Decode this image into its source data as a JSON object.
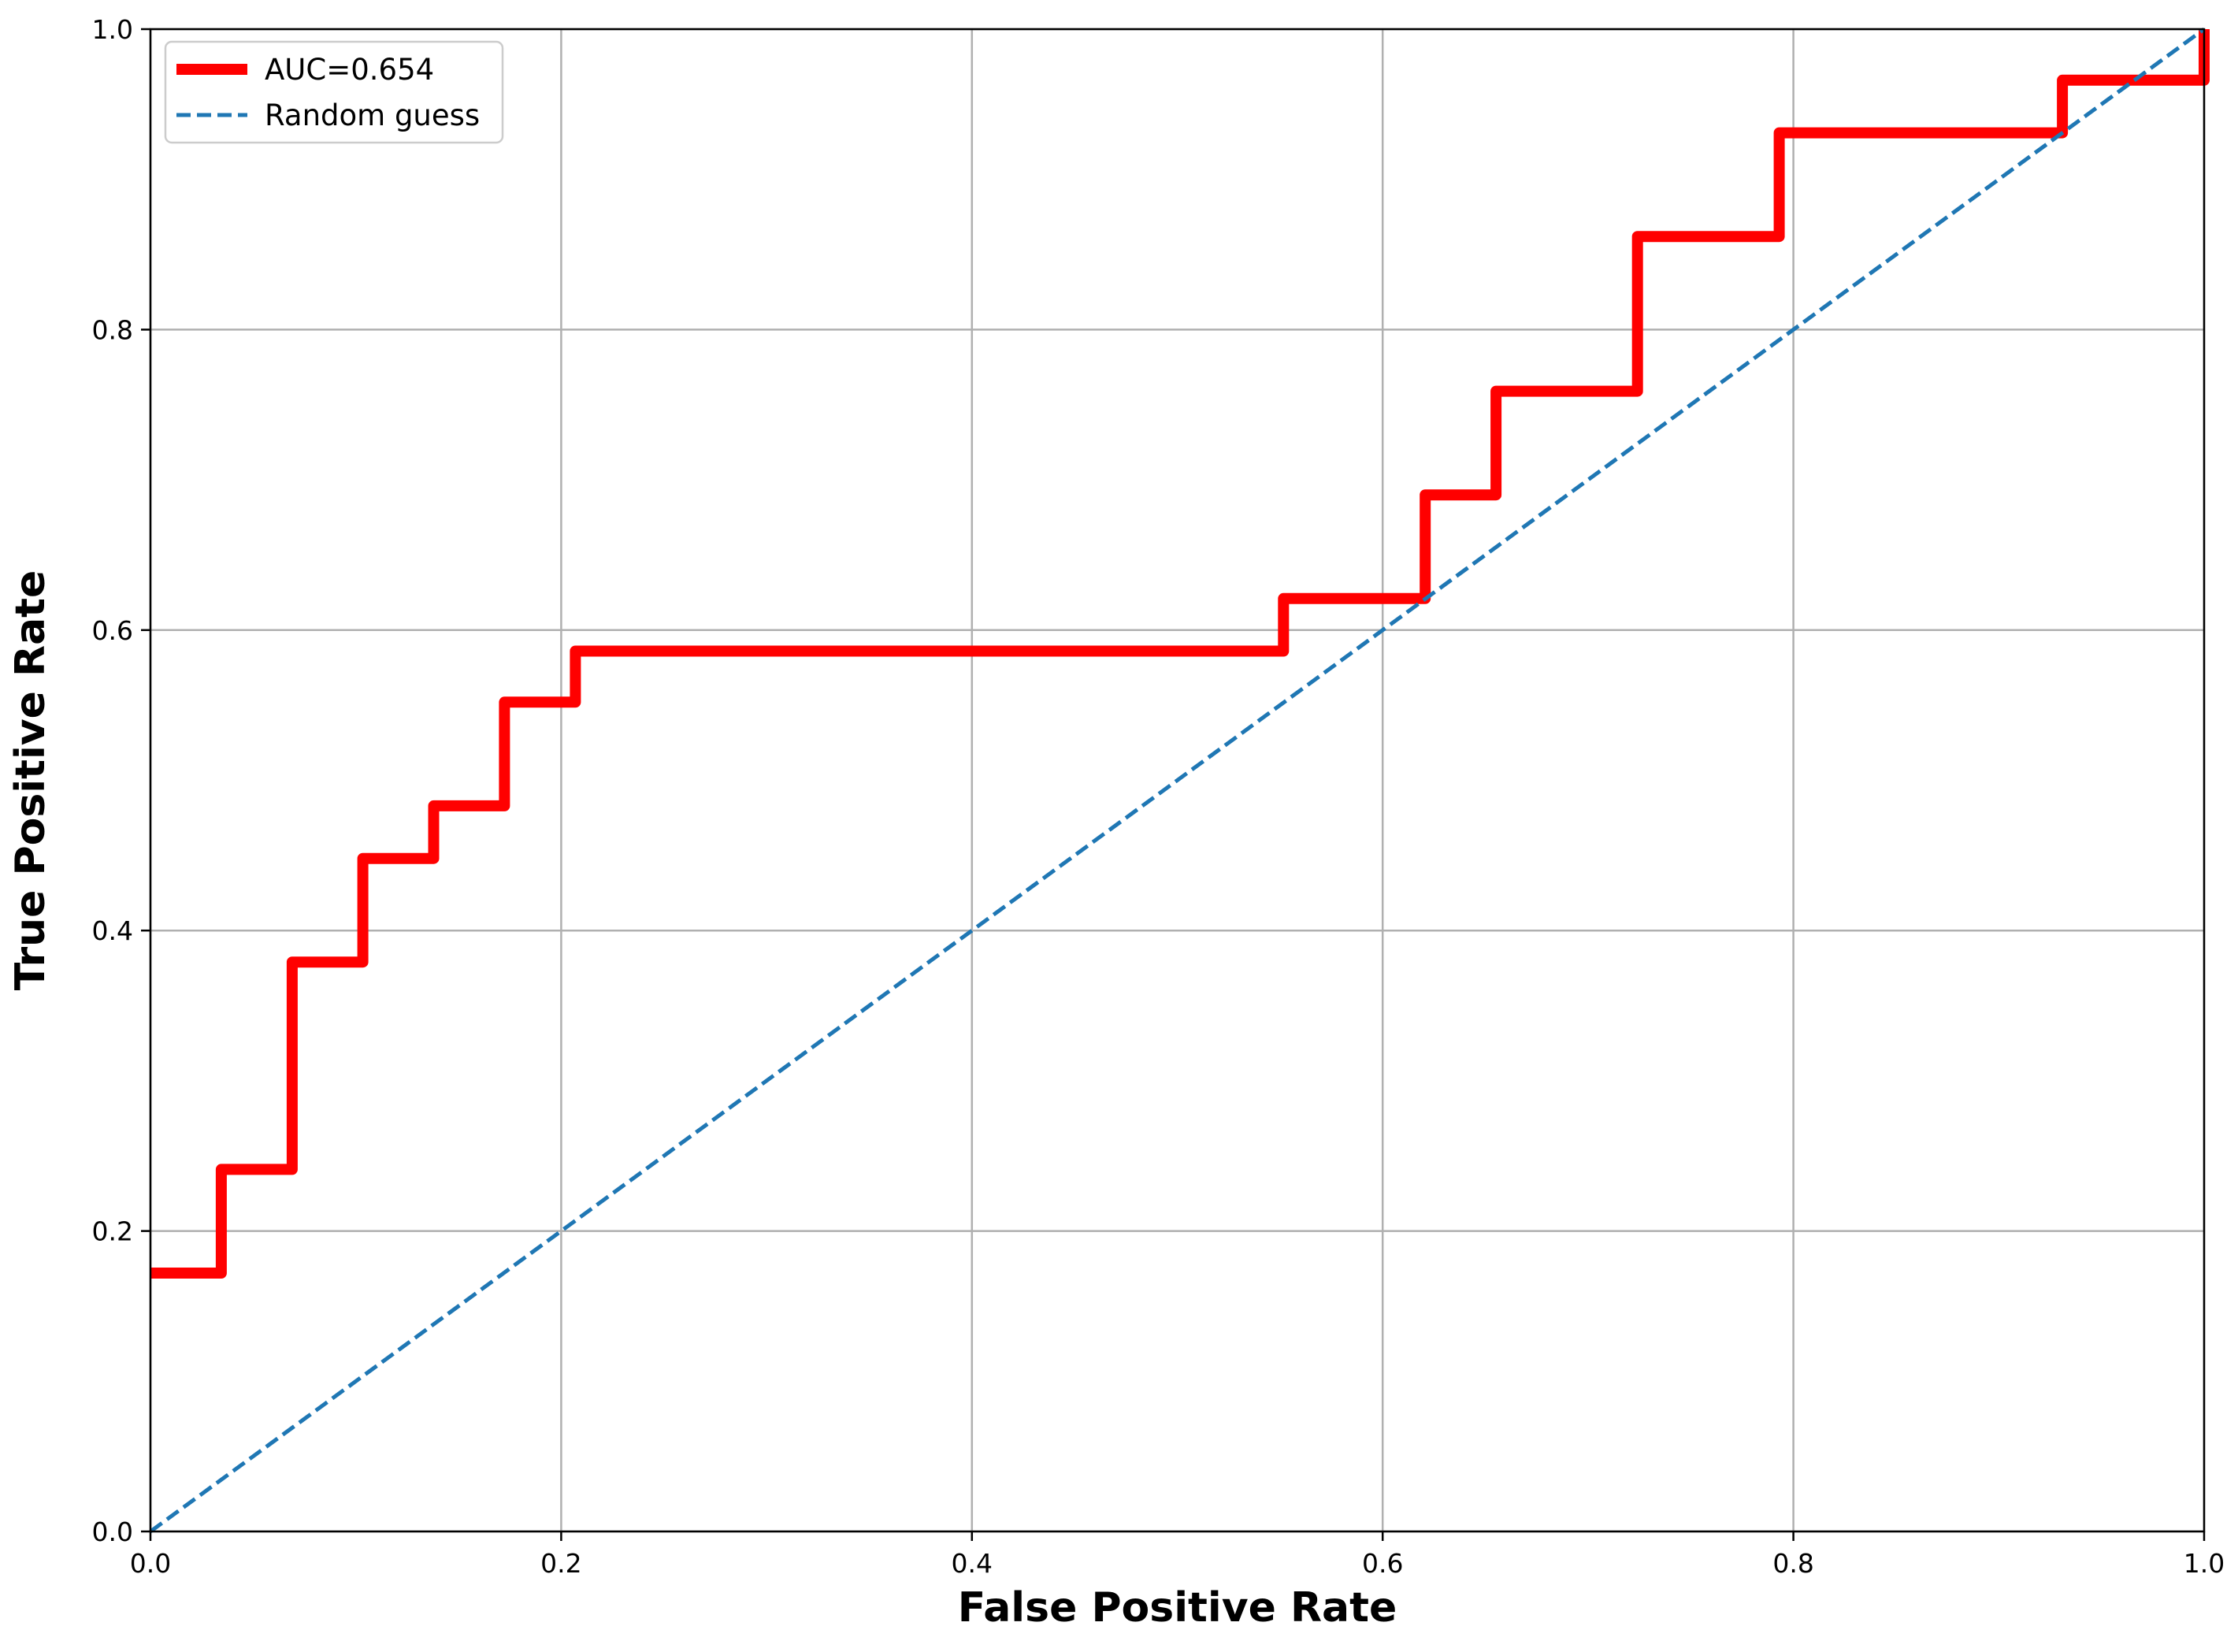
{
  "chart_data": {
    "type": "line",
    "title": "",
    "xlabel": "False Positive Rate",
    "ylabel": "True Positive Rate",
    "xlim": [
      0.0,
      1.0
    ],
    "ylim": [
      0.0,
      1.0
    ],
    "xticks": [
      "0.0",
      "0.2",
      "0.4",
      "0.6",
      "0.8",
      "1.0"
    ],
    "yticks": [
      "0.0",
      "0.2",
      "0.4",
      "0.6",
      "0.8",
      "1.0"
    ],
    "grid": true,
    "legend_position": "top-left",
    "series": [
      {
        "name": "AUC=0.654",
        "color": "#ff0000",
        "style": "solid",
        "step": true,
        "points": [
          [
            0.0,
            0.172
          ],
          [
            0.0345,
            0.172
          ],
          [
            0.0345,
            0.241
          ],
          [
            0.069,
            0.241
          ],
          [
            0.069,
            0.379
          ],
          [
            0.1034,
            0.379
          ],
          [
            0.1034,
            0.448
          ],
          [
            0.1379,
            0.448
          ],
          [
            0.1379,
            0.483
          ],
          [
            0.1724,
            0.483
          ],
          [
            0.1724,
            0.552
          ],
          [
            0.2069,
            0.552
          ],
          [
            0.2069,
            0.586
          ],
          [
            0.5517,
            0.586
          ],
          [
            0.5517,
            0.621
          ],
          [
            0.6207,
            0.621
          ],
          [
            0.6207,
            0.69
          ],
          [
            0.6552,
            0.69
          ],
          [
            0.6552,
            0.759
          ],
          [
            0.7241,
            0.759
          ],
          [
            0.7241,
            0.862
          ],
          [
            0.7931,
            0.862
          ],
          [
            0.7931,
            0.931
          ],
          [
            0.931,
            0.931
          ],
          [
            0.931,
            0.966
          ],
          [
            1.0,
            0.966
          ],
          [
            1.0,
            1.0
          ]
        ]
      },
      {
        "name": "Random guess",
        "color": "#1f77b4",
        "style": "dashed",
        "step": false,
        "points": [
          [
            0.0,
            0.0
          ],
          [
            1.0,
            1.0
          ]
        ]
      }
    ]
  }
}
